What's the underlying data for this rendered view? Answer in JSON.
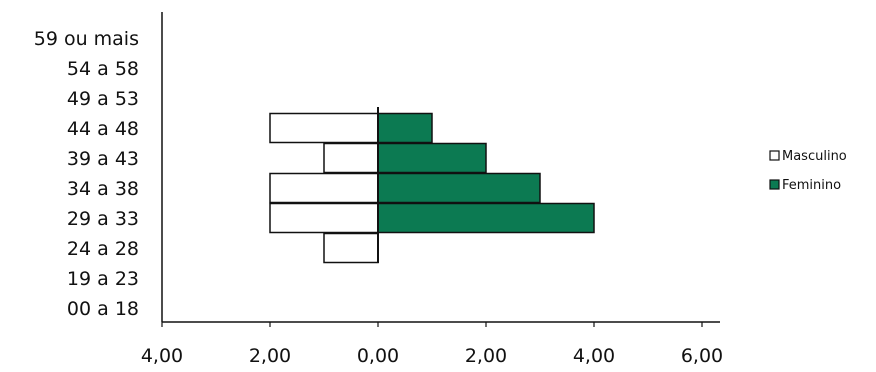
{
  "chart_data": {
    "type": "bar",
    "orientation": "horizontal",
    "categories": [
      "00 a 18",
      "19 a 23",
      "24 a 28",
      "29 a 33",
      "34 a 38",
      "39 a 43",
      "44 a 48",
      "49 a 53",
      "54 a 58",
      "59 ou mais"
    ],
    "series": [
      {
        "name": "Masculino",
        "values": [
          0,
          0,
          1,
          2,
          2,
          1,
          2,
          0,
          0,
          0
        ],
        "color": "#ffffff",
        "direction": "left"
      },
      {
        "name": "Feminino",
        "values": [
          0,
          0,
          0,
          4,
          3,
          2,
          1,
          0,
          0,
          0
        ],
        "color": "#0c7a52",
        "direction": "right"
      }
    ],
    "x_ticks": [
      "4,00",
      "2,00",
      "0,00",
      "2,00",
      "4,00",
      "6,00"
    ],
    "xlim": [
      -4,
      6
    ],
    "grid": false,
    "legend_position": "right"
  }
}
